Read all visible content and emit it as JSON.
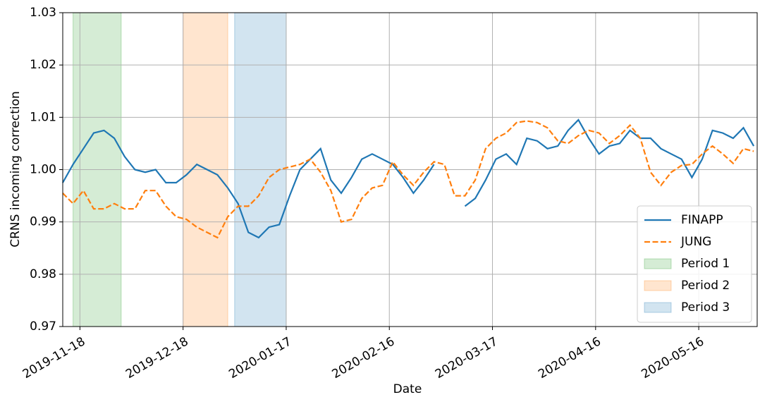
{
  "chart_data": {
    "type": "line",
    "xlabel": "Date",
    "ylabel": "CRNS incoming correction",
    "x": [
      "2019-11-13",
      "2019-11-16",
      "2019-11-19",
      "2019-11-22",
      "2019-11-25",
      "2019-11-28",
      "2019-12-01",
      "2019-12-04",
      "2019-12-07",
      "2019-12-10",
      "2019-12-13",
      "2019-12-16",
      "2019-12-19",
      "2019-12-22",
      "2019-12-25",
      "2019-12-28",
      "2019-12-31",
      "2020-01-03",
      "2020-01-06",
      "2020-01-09",
      "2020-01-12",
      "2020-01-15",
      "2020-01-18",
      "2020-01-21",
      "2020-01-24",
      "2020-01-27",
      "2020-01-30",
      "2020-02-02",
      "2020-02-05",
      "2020-02-08",
      "2020-02-11",
      "2020-02-14",
      "2020-02-17",
      "2020-02-20",
      "2020-02-23",
      "2020-02-26",
      "2020-02-29",
      "2020-03-03",
      "2020-03-06",
      "2020-03-09",
      "2020-03-12",
      "2020-03-15",
      "2020-03-18",
      "2020-03-21",
      "2020-03-24",
      "2020-03-27",
      "2020-03-30",
      "2020-04-02",
      "2020-04-05",
      "2020-04-08",
      "2020-04-11",
      "2020-04-14",
      "2020-04-17",
      "2020-04-20",
      "2020-04-23",
      "2020-04-26",
      "2020-04-29",
      "2020-05-02",
      "2020-05-05",
      "2020-05-08",
      "2020-05-11",
      "2020-05-14",
      "2020-05-17",
      "2020-05-20",
      "2020-05-23",
      "2020-05-26",
      "2020-05-29",
      "2020-06-01"
    ],
    "series": [
      {
        "name": "FINAPP",
        "color": "#1f77b4",
        "dash": false,
        "values": [
          0.9975,
          1.001,
          1.004,
          1.007,
          1.0075,
          1.006,
          1.0025,
          1.0,
          0.9995,
          1.0,
          0.9975,
          0.9975,
          0.999,
          1.001,
          1.0,
          0.999,
          0.9965,
          0.9935,
          0.988,
          0.987,
          0.989,
          0.9895,
          0.995,
          1.0,
          1.002,
          1.004,
          0.998,
          0.9955,
          0.9985,
          1.002,
          1.003,
          1.002,
          1.001,
          0.9985,
          0.9955,
          0.998,
          1.001,
          null,
          null,
          0.993,
          0.9945,
          0.998,
          1.002,
          1.003,
          1.001,
          1.006,
          1.0055,
          1.004,
          1.0045,
          1.0075,
          1.0095,
          1.006,
          1.003,
          1.0045,
          1.005,
          1.0075,
          1.006,
          1.006,
          1.004,
          1.003,
          1.002,
          0.9985,
          1.002,
          1.0075,
          1.007,
          1.006,
          1.008,
          1.0045
        ]
      },
      {
        "name": "JUNG",
        "color": "#ff7f0e",
        "dash": true,
        "values": [
          0.9955,
          0.9935,
          0.996,
          0.9925,
          0.9925,
          0.9935,
          0.9925,
          0.9925,
          0.996,
          0.996,
          0.993,
          0.991,
          0.9905,
          0.989,
          0.988,
          0.987,
          0.991,
          0.993,
          0.993,
          0.995,
          0.9985,
          1.0,
          1.0005,
          1.001,
          1.002,
          0.9995,
          0.996,
          0.99,
          0.9905,
          0.9945,
          0.9965,
          0.997,
          1.0015,
          0.999,
          0.997,
          0.9995,
          1.0015,
          1.001,
          0.995,
          0.995,
          0.998,
          1.004,
          1.006,
          1.007,
          1.009,
          1.0093,
          1.009,
          1.008,
          1.0055,
          1.005,
          1.0065,
          1.0075,
          1.007,
          1.005,
          1.0065,
          1.0085,
          1.006,
          0.9995,
          0.997,
          0.9995,
          1.0008,
          1.001,
          1.003,
          1.0045,
          1.003,
          1.0012,
          1.004,
          1.0035
        ]
      }
    ],
    "periods": [
      {
        "name": "Period 1",
        "color": "#2ca02c",
        "start": "2019-11-16",
        "end": "2019-11-30"
      },
      {
        "name": "Period 2",
        "color": "#ff7f0e",
        "start": "2019-12-18",
        "end": "2019-12-31"
      },
      {
        "name": "Period 3",
        "color": "#1f77b4",
        "start": "2020-01-02",
        "end": "2020-01-17"
      }
    ],
    "xlim": [
      "2019-11-13",
      "2020-06-02"
    ],
    "xticks": [
      "2019-11-18",
      "2019-12-18",
      "2020-01-17",
      "2020-02-16",
      "2020-03-17",
      "2020-04-16",
      "2020-05-16"
    ],
    "ylim": [
      0.97,
      1.03
    ],
    "yticks": [
      0.97,
      0.98,
      0.99,
      {
        "value": 1,
        "label": "1.00"
      },
      1.01,
      1.02,
      1.03
    ],
    "grid": true,
    "legend": "lower right"
  }
}
